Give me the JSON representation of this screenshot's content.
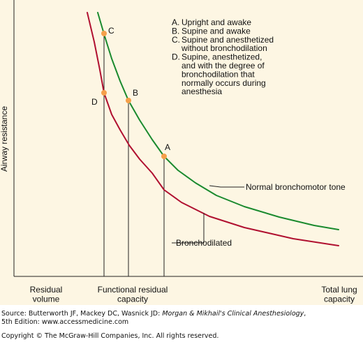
{
  "chart_data": {
    "type": "line",
    "ylabel": "Airway resistance",
    "x_labels": [
      {
        "id": "rv",
        "lines": [
          "Residual",
          "volume"
        ]
      },
      {
        "id": "frc",
        "lines": [
          "Functional residual",
          "capacity"
        ]
      },
      {
        "id": "tlc",
        "lines": [
          "Total lung",
          "capacity"
        ]
      }
    ],
    "series": [
      {
        "name": "Normal bronchomotor tone",
        "color": "#1a8a2e",
        "points": [
          [
            140,
            18
          ],
          [
            150,
            52
          ],
          [
            160,
            84
          ],
          [
            172,
            116
          ],
          [
            184,
            144
          ],
          [
            200,
            172
          ],
          [
            218,
            200
          ],
          [
            235,
            224
          ],
          [
            255,
            244
          ],
          [
            280,
            262
          ],
          [
            310,
            280
          ],
          [
            350,
            296
          ],
          [
            400,
            311
          ],
          [
            450,
            323
          ],
          [
            485,
            329
          ]
        ]
      },
      {
        "name": "Bronchodilated",
        "color": "#b01030",
        "points": [
          [
            125,
            18
          ],
          [
            135,
            60
          ],
          [
            143,
            100
          ],
          [
            149,
            133
          ],
          [
            160,
            164
          ],
          [
            172,
            186
          ],
          [
            185,
            208
          ],
          [
            200,
            228
          ],
          [
            218,
            248
          ],
          [
            235,
            272
          ],
          [
            260,
            290
          ],
          [
            300,
            310
          ],
          [
            350,
            326
          ],
          [
            420,
            342
          ],
          [
            485,
            352
          ]
        ]
      }
    ],
    "points": [
      {
        "label": "C",
        "on": "Normal bronchomotor tone",
        "at": [
          149,
          48
        ],
        "drop": true
      },
      {
        "label": "B",
        "on": "Normal bronchomotor tone",
        "at": [
          184,
          144
        ],
        "drop": true
      },
      {
        "label": "A",
        "on": "Normal bronchomotor tone",
        "at": [
          235,
          224
        ],
        "drop": true
      },
      {
        "label": "D",
        "on": "Bronchodilated",
        "at": [
          149,
          133
        ],
        "drop": false
      }
    ],
    "point_color": "#f5a04a",
    "legend_entries": [
      {
        "key": "A.",
        "lines": [
          "Upright and awake"
        ]
      },
      {
        "key": "B.",
        "lines": [
          "Supine and awake"
        ]
      },
      {
        "key": "C.",
        "lines": [
          "Supine and anesthetized",
          "without bronchodilation"
        ]
      },
      {
        "key": "D.",
        "lines": [
          "Supine, anesthetized,",
          "and with the degree of",
          "bronchodilation that",
          "normally occurs during",
          "anesthesia"
        ]
      }
    ]
  },
  "footer": {
    "source_prefix": "Source: Butterworth JF, Mackey DC, Wasnick JD: ",
    "source_title": "Morgan & Mikhail's Clinical Anesthesiology",
    "source_suffix": ",",
    "edition": "5th Edition: www.accessmedicine.com",
    "copyright": "Copyright © The McGraw-Hill Companies, Inc. All rights reserved."
  }
}
